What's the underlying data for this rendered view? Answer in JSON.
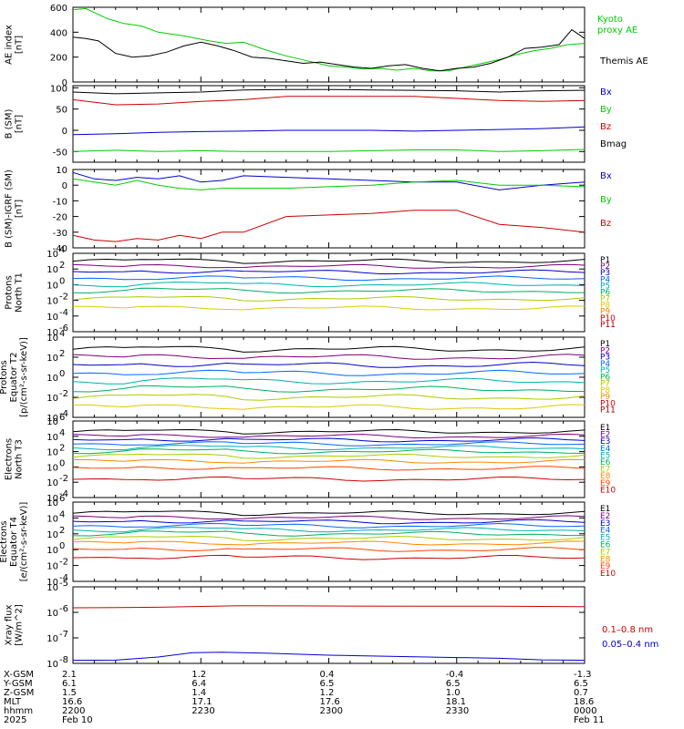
{
  "chart_data": [
    {
      "type": "line",
      "ylabel": "AE index [nT]",
      "ylim": [
        0,
        600
      ],
      "yticks": [
        "600",
        "400",
        "200",
        "0"
      ],
      "x_range_minutes": [
        0,
        120
      ],
      "series": [
        {
          "name": "Kyoto proxy AE",
          "color": "#00cc00",
          "x": [
            0,
            3,
            8,
            12,
            16,
            20,
            26,
            32,
            36,
            40,
            45,
            50,
            55,
            60,
            64,
            68,
            72,
            76,
            80,
            84,
            88,
            92,
            96,
            100,
            104,
            108,
            112,
            116,
            120
          ],
          "y": [
            580,
            590,
            510,
            470,
            450,
            400,
            370,
            330,
            310,
            320,
            260,
            210,
            170,
            130,
            120,
            105,
            110,
            95,
            110,
            90,
            90,
            120,
            150,
            180,
            220,
            250,
            270,
            300,
            310
          ]
        },
        {
          "name": "Themis AE",
          "color": "#000000",
          "x": [
            0,
            3,
            6,
            10,
            14,
            18,
            22,
            26,
            30,
            34,
            38,
            42,
            46,
            50,
            54,
            58,
            62,
            66,
            70,
            74,
            78,
            82,
            86,
            90,
            94,
            98,
            102,
            106,
            110,
            114,
            117,
            120
          ],
          "y": [
            360,
            350,
            330,
            230,
            200,
            210,
            240,
            290,
            320,
            290,
            250,
            200,
            190,
            170,
            150,
            160,
            140,
            120,
            110,
            130,
            140,
            110,
            90,
            110,
            120,
            150,
            200,
            270,
            280,
            300,
            420,
            350
          ]
        }
      ]
    },
    {
      "type": "line",
      "ylabel": "B (SM) [nT]",
      "ylim": [
        -75,
        105
      ],
      "yticks": [
        "100",
        "50",
        "0",
        "-50"
      ],
      "series": [
        {
          "name": "Bx",
          "color": "#0000cc",
          "x": [
            0,
            10,
            20,
            30,
            40,
            50,
            60,
            70,
            80,
            90,
            100,
            110,
            120
          ],
          "y": [
            -10,
            -8,
            -5,
            -3,
            -2,
            0,
            0,
            0,
            -2,
            0,
            2,
            4,
            8
          ]
        },
        {
          "name": "By",
          "color": "#00cc00",
          "x": [
            0,
            10,
            20,
            30,
            40,
            50,
            60,
            70,
            80,
            90,
            100,
            110,
            120
          ],
          "y": [
            -50,
            -47,
            -50,
            -48,
            -50,
            -50,
            -50,
            -48,
            -46,
            -46,
            -50,
            -48,
            -45
          ]
        },
        {
          "name": "Bz",
          "color": "#cc0000",
          "x": [
            0,
            10,
            20,
            30,
            40,
            50,
            60,
            70,
            80,
            90,
            100,
            110,
            120
          ],
          "y": [
            72,
            60,
            62,
            68,
            72,
            80,
            80,
            80,
            80,
            75,
            70,
            68,
            70
          ]
        },
        {
          "name": "Bmag",
          "color": "#000000",
          "x": [
            0,
            10,
            20,
            30,
            40,
            50,
            60,
            70,
            80,
            90,
            100,
            110,
            120
          ],
          "y": [
            90,
            86,
            88,
            90,
            95,
            96,
            96,
            95,
            94,
            93,
            90,
            93,
            94
          ]
        }
      ]
    },
    {
      "type": "line",
      "ylabel": "B (SM)-IGRF (SM) [nT]",
      "ylim": [
        -40,
        10
      ],
      "yticks": [
        "10",
        "0",
        "-10",
        "-20",
        "-30",
        "-40"
      ],
      "series": [
        {
          "name": "Bx",
          "color": "#0000cc",
          "x": [
            0,
            5,
            10,
            15,
            20,
            25,
            30,
            35,
            40,
            50,
            60,
            70,
            80,
            90,
            100,
            110,
            120
          ],
          "y": [
            8,
            4,
            3,
            5,
            4,
            6,
            2,
            3,
            6,
            5,
            4,
            3,
            2,
            2,
            -3,
            0,
            2
          ]
        },
        {
          "name": "By",
          "color": "#00cc00",
          "x": [
            0,
            5,
            10,
            15,
            20,
            25,
            30,
            35,
            40,
            50,
            60,
            70,
            80,
            90,
            100,
            110,
            120
          ],
          "y": [
            4,
            2,
            0,
            3,
            0,
            -2,
            -3,
            -2,
            -2,
            -2,
            -1,
            0,
            2,
            3,
            0,
            0,
            -1
          ]
        },
        {
          "name": "Bz",
          "color": "#cc0000",
          "x": [
            0,
            5,
            10,
            15,
            20,
            25,
            30,
            35,
            40,
            50,
            60,
            70,
            80,
            90,
            100,
            110,
            120
          ],
          "y": [
            -32,
            -35,
            -36,
            -34,
            -35,
            -32,
            -34,
            -30,
            -30,
            -20,
            -19,
            -18,
            -16,
            -16,
            -25,
            -27,
            -30
          ]
        }
      ]
    },
    {
      "type": "line",
      "ylabel": "Protons North T1",
      "log": true,
      "ylim_exp": [
        -6,
        4
      ],
      "yticks_exp": [
        4,
        2,
        0,
        -2,
        -4,
        -6
      ],
      "series": [
        {
          "name": "P1",
          "color": "#000000",
          "level": 3.0
        },
        {
          "name": "P2",
          "color": "#7a007a",
          "level": 2.3
        },
        {
          "name": "P3",
          "color": "#0000cc",
          "level": 1.6
        },
        {
          "name": "P4",
          "color": "#0066ff",
          "level": 0.8
        },
        {
          "name": "P5",
          "color": "#00b0b0",
          "level": 0.0
        },
        {
          "name": "P6",
          "color": "#00b060",
          "level": -0.8
        },
        {
          "name": "P7",
          "color": "#aacc00",
          "level": -1.8
        },
        {
          "name": "P8",
          "color": "#e0c800",
          "level": -3.0
        },
        {
          "name": "P9",
          "color": "#ff8800",
          "level": null
        },
        {
          "name": "P10",
          "color": "#cc0000",
          "level": null
        },
        {
          "name": "P11",
          "color": "#aa0000",
          "level": null
        }
      ]
    },
    {
      "type": "line",
      "ylabel": "Protons Equator T2 [p/(cm²-s-sr-keV)]",
      "log": true,
      "ylim_exp": [
        -4,
        4
      ],
      "yticks_exp": [
        4,
        2,
        0,
        -2,
        -4
      ],
      "series": [
        {
          "name": "P1",
          "color": "#000000",
          "level": 2.8
        },
        {
          "name": "P2",
          "color": "#7a007a",
          "level": 2.0
        },
        {
          "name": "P3",
          "color": "#0000cc",
          "level": 1.2
        },
        {
          "name": "P4",
          "color": "#0066ff",
          "level": 0.4
        },
        {
          "name": "P5",
          "color": "#00b0b0",
          "level": -0.4
        },
        {
          "name": "P6",
          "color": "#00b060",
          "level": -1.2
        },
        {
          "name": "P7",
          "color": "#aacc00",
          "level": -2.0
        },
        {
          "name": "P8",
          "color": "#e0c800",
          "level": -3.0
        },
        {
          "name": "P9",
          "color": "#ff8800",
          "level": null
        },
        {
          "name": "P10",
          "color": "#cc0000",
          "level": null
        },
        {
          "name": "P11",
          "color": "#aa0000",
          "level": null
        }
      ]
    },
    {
      "type": "line",
      "ylabel": "Electrons North T3",
      "log": true,
      "ylim_exp": [
        -4,
        6
      ],
      "yticks_exp": [
        6,
        4,
        2,
        0,
        -2,
        -4
      ],
      "series": [
        {
          "name": "E1",
          "color": "#000000",
          "level": 4.6
        },
        {
          "name": "E2",
          "color": "#7a007a",
          "level": 4.0
        },
        {
          "name": "E3",
          "color": "#0000cc",
          "level": 3.5
        },
        {
          "name": "E4",
          "color": "#0066ff",
          "level": 3.0
        },
        {
          "name": "E5",
          "color": "#00b0b0",
          "level": 2.5
        },
        {
          "name": "E6",
          "color": "#00b060",
          "level": 2.0
        },
        {
          "name": "E7",
          "color": "#aacc00",
          "level": 1.4
        },
        {
          "name": "E8",
          "color": "#ff8800",
          "level": 0.7
        },
        {
          "name": "E9",
          "color": "#ff4400",
          "level": -0.2
        },
        {
          "name": "E10",
          "color": "#cc0000",
          "level": -1.6
        }
      ]
    },
    {
      "type": "line",
      "ylabel": "Electrons Equator T4 [e/(cm²-s-sr-keV)]",
      "log": true,
      "ylim_exp": [
        -4,
        6
      ],
      "yticks_exp": [
        6,
        4,
        2,
        0,
        -2,
        -4
      ],
      "series": [
        {
          "name": "E1",
          "color": "#000000",
          "level": 4.6
        },
        {
          "name": "E2",
          "color": "#7a007a",
          "level": 4.0
        },
        {
          "name": "E3",
          "color": "#0000cc",
          "level": 3.5
        },
        {
          "name": "E4",
          "color": "#0066ff",
          "level": 3.0
        },
        {
          "name": "E5",
          "color": "#00b0b0",
          "level": 2.5
        },
        {
          "name": "E6",
          "color": "#00b060",
          "level": 2.0
        },
        {
          "name": "E7",
          "color": "#aacc00",
          "level": 1.4
        },
        {
          "name": "E8",
          "color": "#ff8800",
          "level": 0.8
        },
        {
          "name": "E9",
          "color": "#ff4400",
          "level": 0.0
        },
        {
          "name": "E10",
          "color": "#cc0000",
          "level": -1.0
        }
      ]
    },
    {
      "type": "line",
      "ylabel": "Xray flux [W/m^2]",
      "log": true,
      "ylim_exp": [
        -8,
        -5
      ],
      "yticks_exp": [
        -5,
        -6,
        -7,
        -8
      ],
      "series": [
        {
          "name": "0.1–0.8 nm",
          "color": "#cc0000",
          "x": [
            0,
            20,
            40,
            60,
            80,
            100,
            120
          ],
          "y_exp": [
            -5.82,
            -5.8,
            -5.74,
            -5.75,
            -5.76,
            -5.76,
            -5.78
          ]
        },
        {
          "name": "0.05–0.4 nm",
          "color": "#0000cc",
          "x": [
            0,
            10,
            20,
            28,
            35,
            45,
            60,
            80,
            100,
            110,
            120
          ],
          "y_exp": [
            -7.88,
            -7.87,
            -7.75,
            -7.58,
            -7.56,
            -7.6,
            -7.68,
            -7.74,
            -7.8,
            -7.86,
            -7.88
          ]
        }
      ]
    }
  ],
  "panels": [
    {
      "ylabel": "AE index\n[nT]",
      "ticks": [
        "600",
        "400",
        "200",
        "0"
      ]
    },
    {
      "ylabel": "B (SM)\n[nT]",
      "ticks": [
        "100",
        "50",
        "0",
        "-50"
      ]
    },
    {
      "ylabel": "B (SM)-IGRF (SM)\n[nT]",
      "ticks": [
        "10",
        "0",
        "-10",
        "-20",
        "-30",
        "-40"
      ]
    },
    {
      "ylabel": "Protons\nNorth T1",
      "ticks": [
        "10",
        "10",
        "10",
        "10",
        "10",
        "10"
      ],
      "exps": [
        "4",
        "2",
        "0",
        "-2",
        "-4",
        "-6"
      ]
    },
    {
      "ylabel": "Protons\nEquator T2\n[p/(cm²-s-sr-keV)]",
      "ticks": [
        "10",
        "10",
        "10",
        "10",
        "10"
      ],
      "exps": [
        "4",
        "2",
        "0",
        "-2",
        "-4"
      ]
    },
    {
      "ylabel": "Electrons\nNorth T3",
      "ticks": [
        "10",
        "10",
        "10",
        "10",
        "10",
        "10"
      ],
      "exps": [
        "6",
        "4",
        "2",
        "0",
        "-2",
        "-4"
      ]
    },
    {
      "ylabel": "Electrons\nEquator T4\n[e/(cm²-s-sr-keV)]",
      "ticks": [
        "10",
        "10",
        "10",
        "10",
        "10",
        "10"
      ],
      "exps": [
        "6",
        "4",
        "2",
        "0",
        "-2",
        "-4"
      ]
    },
    {
      "ylabel": "Xray flux\n[W/m^2]",
      "ticks": [
        "10",
        "10",
        "10",
        "10"
      ],
      "exps": [
        "-5",
        "-6",
        "-7",
        "-8"
      ]
    }
  ],
  "legend_top": {
    "kyoto": "Kyoto\nproxy AE",
    "themis": "Themis AE"
  },
  "legend_xray": {
    "long": "0.1–0.8 nm",
    "short": "0.05–0.4 nm"
  },
  "ephemeris": {
    "labels": [
      "X-GSM",
      "Y-GSM",
      "Z-GSM",
      "MLT",
      "hhmm",
      "2025"
    ],
    "columns": [
      [
        "2.1",
        "6.1",
        "1.5",
        "16.6",
        "2200",
        "Feb 10"
      ],
      [
        "1.2",
        "6.4",
        "1.4",
        "17.1",
        "2230",
        ""
      ],
      [
        "0.4",
        "6.5",
        "1.2",
        "17.6",
        "2300",
        ""
      ],
      [
        "-0.4",
        "6.5",
        "1.0",
        "18.1",
        "2330",
        ""
      ],
      [
        "-1.3",
        "6.5",
        "0.7",
        "18.6",
        "0000",
        "Feb 11"
      ]
    ]
  }
}
